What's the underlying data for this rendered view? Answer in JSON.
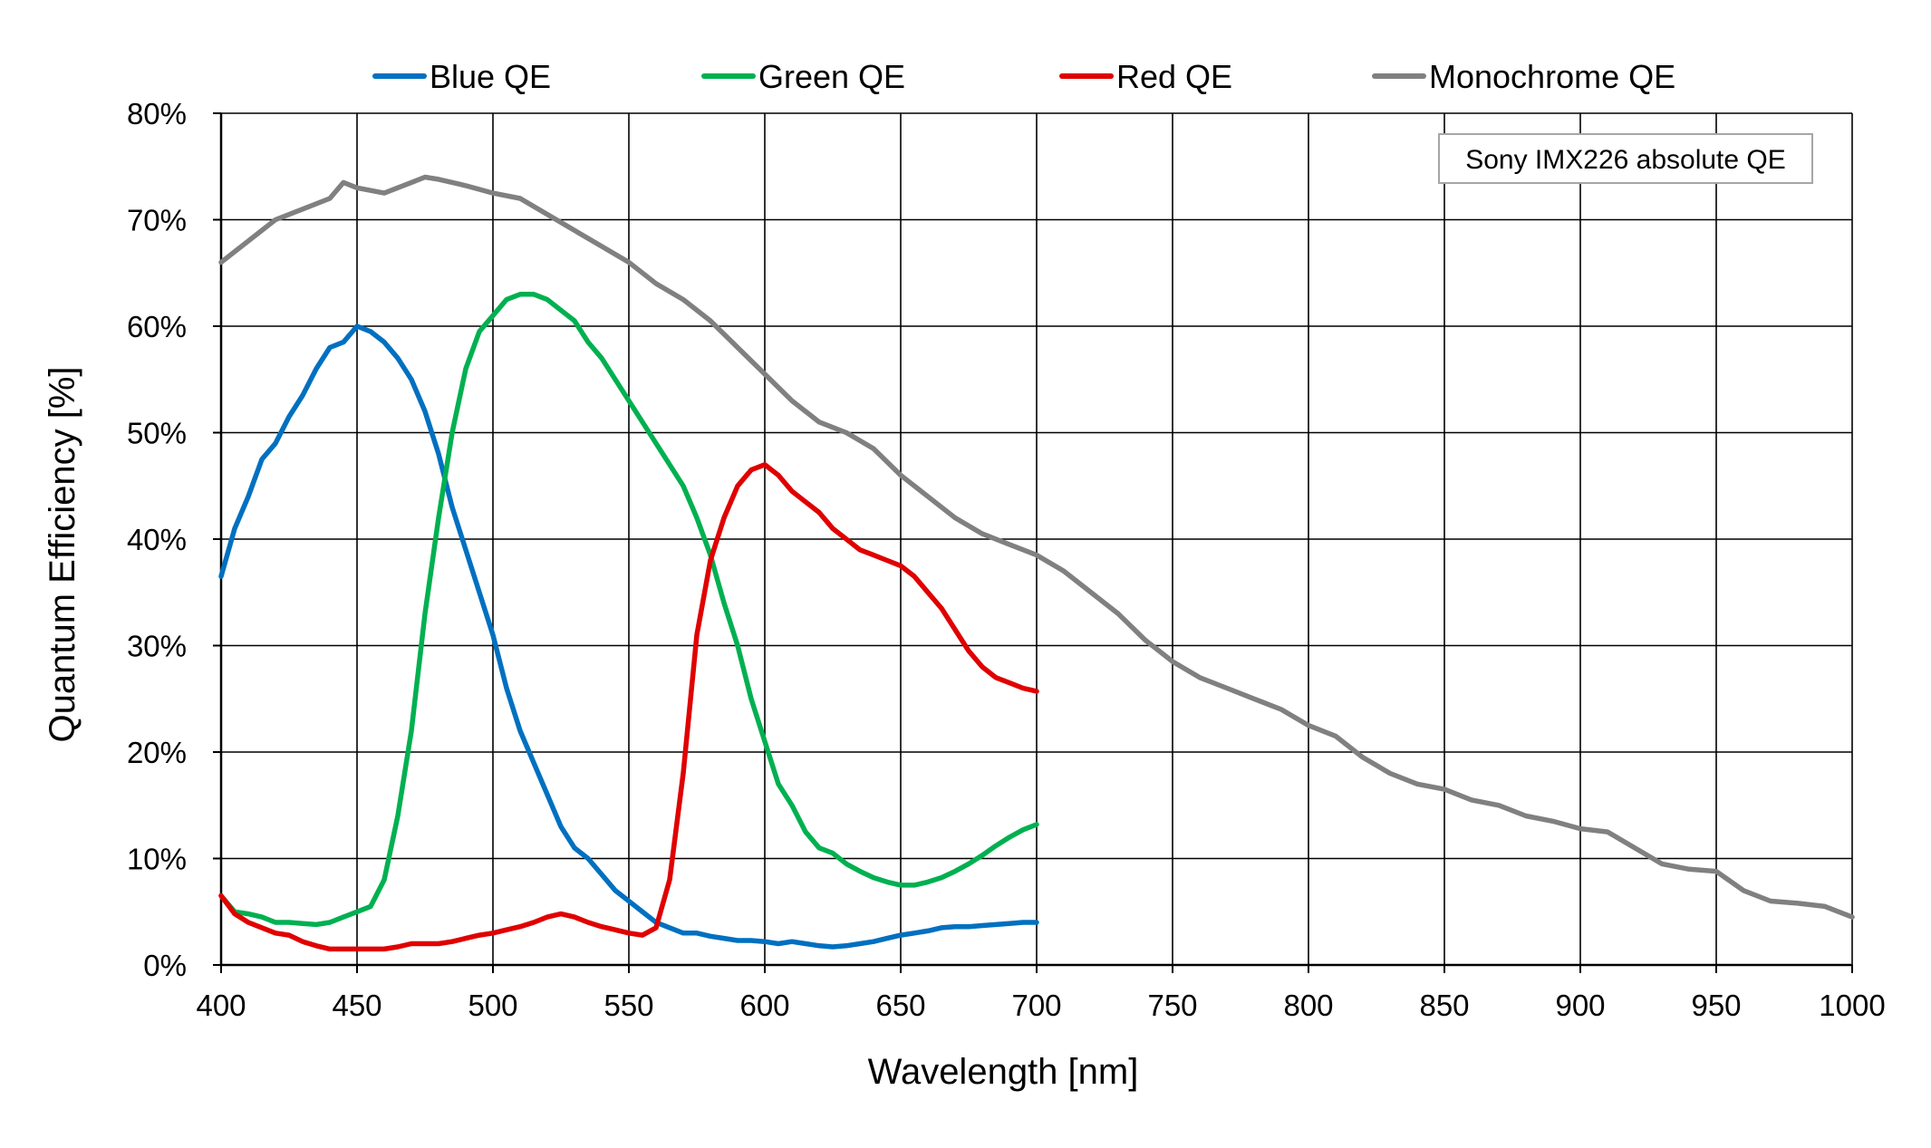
{
  "chart_data": {
    "type": "line",
    "title": "",
    "annotation": "Sony IMX226 absolute QE",
    "xlabel": "Wavelength [nm]",
    "ylabel": "Quantum Efficiency [%]",
    "xlim": [
      400,
      1000
    ],
    "ylim": [
      0,
      80
    ],
    "x_ticks": [
      400,
      450,
      500,
      550,
      600,
      650,
      700,
      750,
      800,
      850,
      900,
      950,
      1000
    ],
    "y_ticks": [
      0,
      10,
      20,
      30,
      40,
      50,
      60,
      70,
      80
    ],
    "x_tick_labels": [
      "400",
      "450",
      "500",
      "550",
      "600",
      "650",
      "700",
      "750",
      "800",
      "850",
      "900",
      "950",
      "1000"
    ],
    "y_tick_labels": [
      "0%",
      "10%",
      "20%",
      "30%",
      "40%",
      "50%",
      "60%",
      "70%",
      "80%"
    ],
    "grid": true,
    "legend_position": "top",
    "series": [
      {
        "name": "Blue QE",
        "color": "#0070C0",
        "x": [
          400,
          405,
          410,
          415,
          420,
          425,
          430,
          435,
          440,
          445,
          450,
          455,
          460,
          465,
          470,
          475,
          480,
          485,
          490,
          495,
          500,
          505,
          510,
          515,
          520,
          525,
          530,
          535,
          540,
          545,
          550,
          555,
          560,
          565,
          570,
          575,
          580,
          585,
          590,
          595,
          600,
          605,
          610,
          615,
          620,
          625,
          630,
          635,
          640,
          645,
          650,
          655,
          660,
          665,
          670,
          675,
          680,
          685,
          690,
          695,
          700
        ],
        "y": [
          36.5,
          41,
          44,
          47.5,
          49,
          51.5,
          53.5,
          56,
          58,
          58.5,
          60,
          59.5,
          58.5,
          57,
          55,
          52,
          48,
          43,
          39,
          35,
          31,
          26,
          22,
          19,
          16,
          13,
          11,
          10,
          8.5,
          7,
          6,
          5,
          4,
          3.5,
          3,
          3,
          2.7,
          2.5,
          2.3,
          2.3,
          2.2,
          2,
          2.2,
          2,
          1.8,
          1.7,
          1.8,
          2,
          2.2,
          2.5,
          2.8,
          3,
          3.2,
          3.5,
          3.6,
          3.6,
          3.7,
          3.8,
          3.9,
          4,
          4
        ]
      },
      {
        "name": "Green QE",
        "color": "#00B050",
        "x": [
          400,
          405,
          410,
          415,
          420,
          425,
          430,
          435,
          440,
          445,
          450,
          455,
          460,
          465,
          470,
          475,
          480,
          485,
          490,
          495,
          500,
          505,
          510,
          515,
          520,
          525,
          530,
          535,
          540,
          545,
          550,
          555,
          560,
          565,
          570,
          575,
          580,
          585,
          590,
          595,
          600,
          605,
          610,
          615,
          620,
          625,
          630,
          635,
          640,
          645,
          650,
          655,
          660,
          665,
          670,
          675,
          680,
          685,
          690,
          695,
          700
        ],
        "y": [
          6.5,
          5,
          4.8,
          4.5,
          4,
          4,
          3.9,
          3.8,
          4,
          4.5,
          5,
          5.5,
          8,
          14,
          22,
          33,
          42,
          50,
          56,
          59.5,
          61,
          62.5,
          63,
          63,
          62.5,
          61.5,
          60.5,
          58.5,
          57,
          55,
          53,
          51,
          49,
          47,
          45,
          42,
          38.5,
          34,
          30,
          25,
          21,
          17,
          15,
          12.5,
          11,
          10.5,
          9.5,
          8.8,
          8.2,
          7.8,
          7.5,
          7.5,
          7.8,
          8.2,
          8.8,
          9.5,
          10.3,
          11.2,
          12,
          12.7,
          13.2
        ]
      },
      {
        "name": "Red QE",
        "color": "#E00000",
        "x": [
          400,
          405,
          410,
          415,
          420,
          425,
          430,
          435,
          440,
          445,
          450,
          455,
          460,
          465,
          470,
          475,
          480,
          485,
          490,
          495,
          500,
          505,
          510,
          515,
          520,
          525,
          530,
          535,
          540,
          545,
          550,
          555,
          560,
          565,
          570,
          575,
          580,
          585,
          590,
          595,
          600,
          605,
          610,
          615,
          620,
          625,
          630,
          635,
          640,
          645,
          650,
          655,
          660,
          665,
          670,
          675,
          680,
          685,
          690,
          695,
          700
        ],
        "y": [
          6.5,
          4.8,
          4,
          3.5,
          3,
          2.8,
          2.2,
          1.8,
          1.5,
          1.5,
          1.5,
          1.5,
          1.5,
          1.7,
          2,
          2,
          2,
          2.2,
          2.5,
          2.8,
          3,
          3.3,
          3.6,
          4,
          4.5,
          4.8,
          4.5,
          4,
          3.6,
          3.3,
          3,
          2.8,
          3.5,
          8,
          18,
          31,
          38,
          42,
          45,
          46.5,
          47,
          46,
          44.5,
          43.5,
          42.5,
          41,
          40,
          39,
          38.5,
          38,
          37.5,
          36.5,
          35,
          33.5,
          31.5,
          29.5,
          28,
          27,
          26.5,
          26,
          25.7
        ]
      },
      {
        "name": "Monochrome QE",
        "color": "#808080",
        "x": [
          400,
          410,
          420,
          430,
          440,
          445,
          450,
          460,
          470,
          475,
          480,
          490,
          500,
          510,
          520,
          530,
          540,
          550,
          560,
          570,
          580,
          590,
          600,
          610,
          620,
          630,
          640,
          650,
          660,
          670,
          680,
          690,
          700,
          710,
          720,
          730,
          740,
          750,
          760,
          770,
          780,
          790,
          800,
          810,
          820,
          830,
          840,
          850,
          860,
          870,
          880,
          890,
          900,
          910,
          920,
          930,
          940,
          950,
          960,
          970,
          980,
          990,
          1000
        ],
        "y": [
          66,
          68,
          70,
          71,
          72,
          73.5,
          73,
          72.5,
          73.5,
          74,
          73.8,
          73.2,
          72.5,
          72,
          70.5,
          69,
          67.5,
          66,
          64,
          62.5,
          60.5,
          58,
          55.5,
          53,
          51,
          50,
          48.5,
          46,
          44,
          42,
          40.5,
          39.5,
          38.5,
          37,
          35,
          33,
          30.5,
          28.5,
          27,
          26,
          25,
          24,
          22.5,
          21.5,
          19.5,
          18,
          17,
          16.5,
          15.5,
          15,
          14,
          13.5,
          12.8,
          12.5,
          11,
          9.5,
          9,
          8.8,
          7,
          6,
          5.8,
          5.5,
          4.5
        ]
      }
    ]
  }
}
